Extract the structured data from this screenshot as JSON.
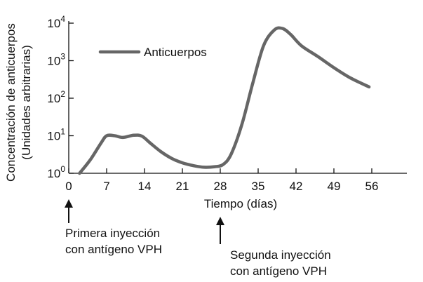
{
  "chart_data": {
    "type": "line",
    "xlabel": "Tiempo (días)",
    "ylabel_lines": [
      "Concentración de anticuerpos",
      "(Unidades arbitrarias)"
    ],
    "x_ticks": [
      0,
      7,
      14,
      21,
      28,
      35,
      42,
      49,
      56
    ],
    "y_scale": "log",
    "y_ticks": [
      {
        "value": 1,
        "base": "10",
        "exp": "0"
      },
      {
        "value": 10,
        "base": "10",
        "exp": "1"
      },
      {
        "value": 100,
        "base": "10",
        "exp": "2"
      },
      {
        "value": 1000,
        "base": "10",
        "exp": "3"
      },
      {
        "value": 10000,
        "base": "10",
        "exp": "4"
      }
    ],
    "xlim": [
      0,
      60
    ],
    "ylim": [
      1,
      10000
    ],
    "grid": false,
    "legend_position": "top-left",
    "series": [
      {
        "name": "Anticuerpos",
        "color": "#666666",
        "x": [
          2,
          4,
          6,
          7,
          8.5,
          10,
          12,
          13.5,
          15,
          17,
          19,
          21,
          23,
          25,
          27,
          28.5,
          30,
          32,
          34,
          36,
          38,
          39.5,
          41,
          43,
          46,
          49,
          52,
          55.5
        ],
        "y": [
          1,
          2.3,
          6.5,
          10,
          10,
          9,
          10.3,
          9.8,
          6.5,
          3.8,
          2.5,
          1.9,
          1.6,
          1.45,
          1.5,
          1.7,
          3.2,
          20,
          250,
          2500,
          6600,
          7200,
          5000,
          2500,
          1300,
          650,
          350,
          200
        ]
      }
    ],
    "annotations": [
      {
        "x": 0,
        "lines": [
          "Primera inyección",
          "con antígeno VPH"
        ]
      },
      {
        "x": 28,
        "lines": [
          "Segunda inyección",
          "con antígeno VPH"
        ]
      }
    ]
  }
}
